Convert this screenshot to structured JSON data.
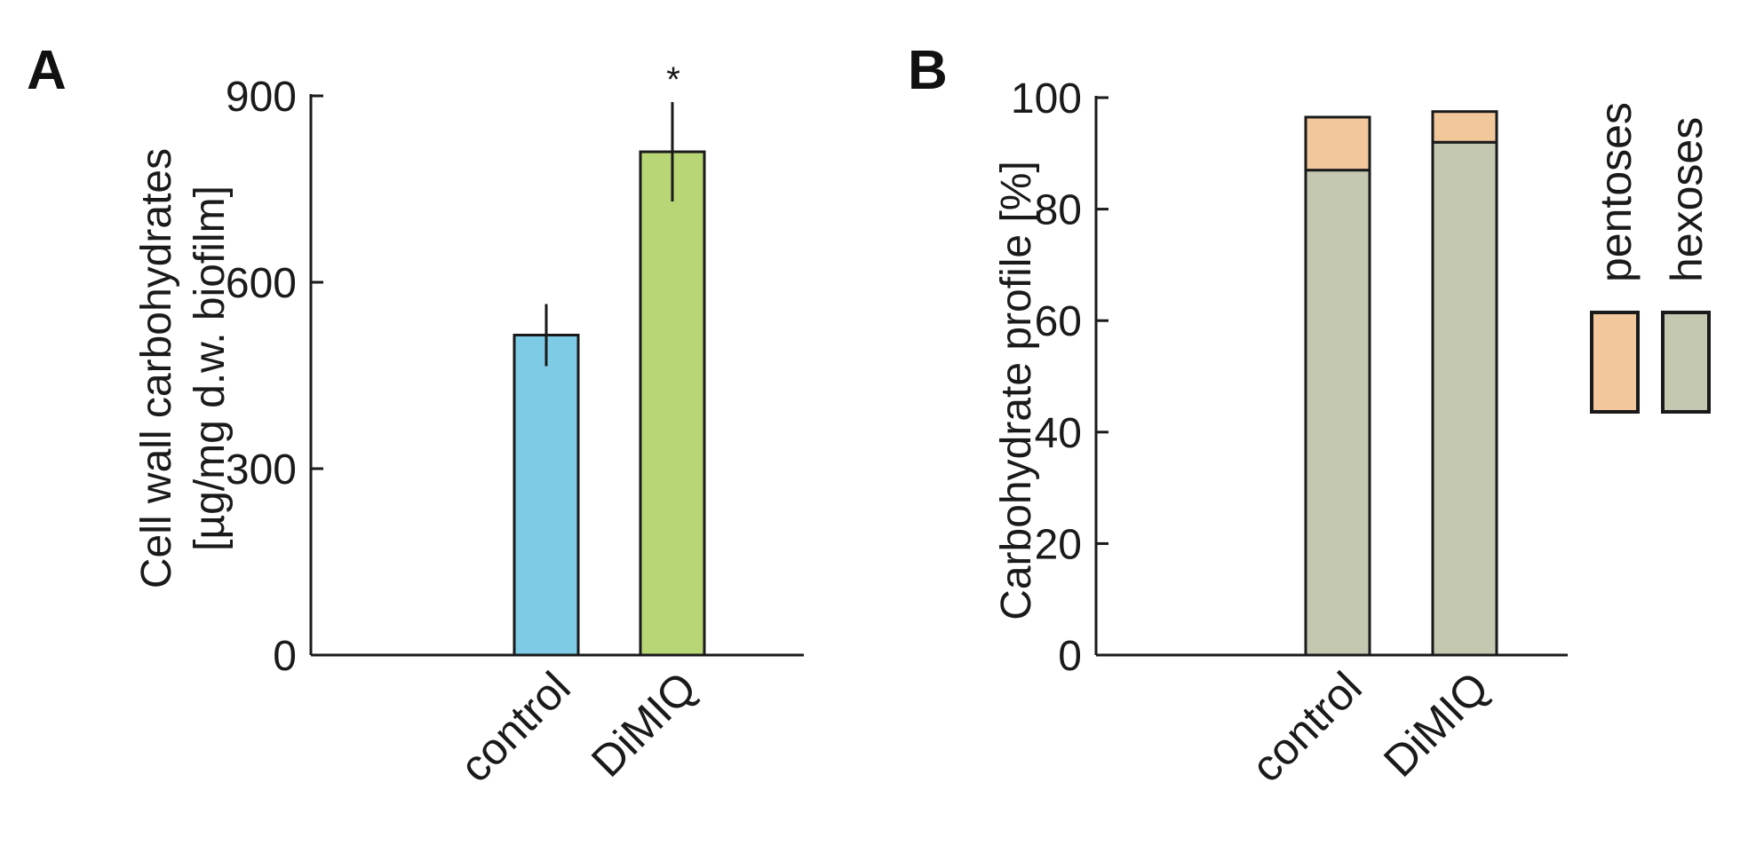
{
  "chart_data": [
    {
      "panel": "A",
      "type": "bar",
      "title": "",
      "ylabel_line1": "Cell wall carbohydrates",
      "ylabel_line2": "[µg/mg d.w. biofilm]",
      "xlabel": "",
      "ylim": [
        0,
        900
      ],
      "yticks": [
        0,
        300,
        600,
        900
      ],
      "categories": [
        "control",
        "DiMIQ"
      ],
      "values": [
        515,
        810
      ],
      "errors": [
        50,
        80
      ],
      "colors": [
        "#7ecbe6",
        "#b8d676"
      ],
      "annotations": [
        "",
        "*"
      ]
    },
    {
      "panel": "B",
      "type": "bar",
      "stacked": true,
      "title": "",
      "ylabel": "Carbohydrate profile [%]",
      "xlabel": "",
      "ylim": [
        0,
        100
      ],
      "yticks": [
        0,
        20,
        40,
        60,
        80,
        100
      ],
      "categories": [
        "control",
        "DiMIQ"
      ],
      "series": [
        {
          "name": "hexoses",
          "values": [
            87,
            92
          ],
          "color": "#c4c8b0"
        },
        {
          "name": "pentoses",
          "values": [
            9.5,
            5.5
          ],
          "color": "#f2c79b"
        }
      ],
      "legend_position": "right"
    }
  ]
}
